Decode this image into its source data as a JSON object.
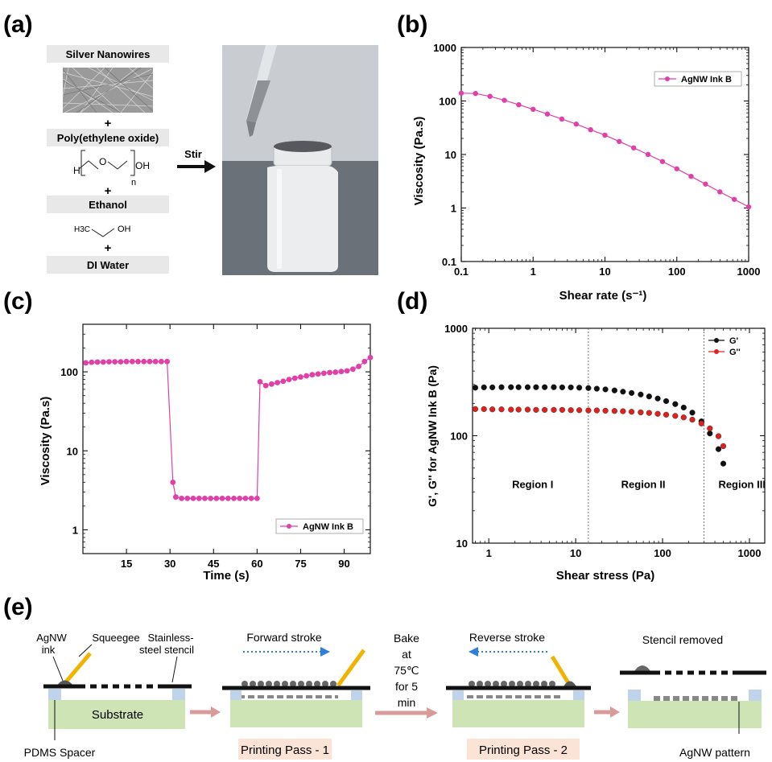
{
  "panels": {
    "a": {
      "label": "(a)",
      "ingredients": [
        "Silver Nanowires",
        "Poly(ethylene oxide)",
        "Ethanol",
        "DI Water"
      ],
      "plus": "+",
      "peo_h": "H",
      "peo_o": "O",
      "peo_oh": "OH",
      "peo_n": "n",
      "eth_ch3": "H3C",
      "eth_oh": "OH",
      "arrow_label": "Stir"
    },
    "b": {
      "label": "(b)"
    },
    "c": {
      "label": "(c)"
    },
    "d": {
      "label": "(d)"
    },
    "e": {
      "label": "(e)",
      "step1": {
        "ink": "AgNW ink",
        "squeegee": "Squeegee",
        "stencil": "Stainless-steel stencil",
        "stencil_l1": "Stainless-",
        "stencil_l2": "steel stencil",
        "substrate": "Substrate",
        "spacer": "PDMS Spacer",
        "ink_l1": "AgNW",
        "ink_l2": "ink"
      },
      "step2": {
        "stroke": "Forward stroke",
        "pass": "Printing Pass - 1"
      },
      "bake": [
        "Bake",
        "at",
        "75℃",
        "for 5",
        "min"
      ],
      "step3": {
        "stroke": "Reverse stroke",
        "pass": "Printing Pass - 2"
      },
      "step4": {
        "removed": "Stencil removed",
        "pattern": "AgNW pattern"
      }
    }
  },
  "chart_data": [
    {
      "panel": "b",
      "type": "line",
      "xscale": "log",
      "yscale": "log",
      "xlabel": "Shear rate (s⁻¹)",
      "ylabel": "Viscosity (Pa.s)",
      "xlim": [
        0.1,
        1000
      ],
      "ylim": [
        0.1,
        1000
      ],
      "xticks": [
        "0.1",
        "1",
        "10",
        "100",
        "1000"
      ],
      "yticks": [
        "0.1",
        "1",
        "10",
        "100",
        "1000"
      ],
      "legend": "top-right",
      "series": [
        {
          "name": "AgNW Ink B",
          "color": "#e040a8",
          "x": [
            0.1,
            0.158,
            0.251,
            0.398,
            0.631,
            1.0,
            1.58,
            2.51,
            3.98,
            6.31,
            10,
            15.8,
            25.1,
            39.8,
            63.1,
            100,
            158,
            251,
            398,
            631,
            1000
          ],
          "y": [
            140,
            138,
            122,
            103,
            85,
            70,
            57,
            46,
            37,
            29,
            23,
            17.5,
            13.3,
            10,
            7.4,
            5.4,
            3.9,
            2.8,
            2.0,
            1.45,
            1.05
          ]
        }
      ]
    },
    {
      "panel": "c",
      "type": "line",
      "yscale": "log",
      "xlabel": "Time (s)",
      "ylabel": "Viscosity (Pa.s)",
      "xlim": [
        0,
        99
      ],
      "ylim": [
        0.5,
        400
      ],
      "xticks": [
        "15",
        "30",
        "45",
        "60",
        "75",
        "90"
      ],
      "yticks": [
        "1",
        "10",
        "100"
      ],
      "legend": "bottom-right",
      "series": [
        {
          "name": "AgNW Ink B",
          "color": "#e040a8",
          "x": [
            1,
            3,
            5,
            7,
            9,
            11,
            13,
            15,
            17,
            19,
            21,
            23,
            25,
            27,
            29,
            31,
            32,
            34,
            36,
            38,
            40,
            42,
            44,
            46,
            48,
            50,
            52,
            54,
            56,
            58,
            60,
            61,
            63,
            65,
            67,
            69,
            71,
            73,
            75,
            77,
            79,
            81,
            83,
            85,
            87,
            89,
            91,
            93,
            95,
            97,
            99
          ],
          "y": [
            130,
            132,
            133,
            133,
            134,
            134,
            134,
            135,
            135,
            135,
            135,
            135,
            135,
            135,
            135,
            4.0,
            2.6,
            2.5,
            2.5,
            2.5,
            2.5,
            2.5,
            2.5,
            2.5,
            2.5,
            2.5,
            2.5,
            2.5,
            2.5,
            2.5,
            2.5,
            75,
            67,
            70,
            73,
            76,
            80,
            83,
            86,
            89,
            92,
            94,
            96,
            98,
            99,
            101,
            103,
            108,
            117,
            135,
            152
          ]
        }
      ]
    },
    {
      "panel": "d",
      "type": "scatter",
      "xscale": "log",
      "yscale": "log",
      "xlabel": "Shear stress (Pa)",
      "ylabel": "G', G'' for AgNW Ink B (Pa)",
      "xlim": [
        0.65,
        1500
      ],
      "ylim": [
        10,
        1000
      ],
      "xticks": [
        "1",
        "10",
        "100",
        "1000"
      ],
      "yticks": [
        "10",
        "100",
        "1000"
      ],
      "legend": "top-right",
      "regions": [
        {
          "label": "Region I"
        },
        {
          "label": "Region II",
          "boundary": 14
        },
        {
          "label": "Region III",
          "boundary": 300
        }
      ],
      "series": [
        {
          "name": "G'",
          "color": "#111111",
          "x": [
            0.7,
            0.88,
            1.1,
            1.4,
            1.8,
            2.2,
            2.8,
            3.5,
            4.4,
            5.6,
            7,
            8.8,
            11,
            14,
            17.5,
            22,
            28,
            35,
            44,
            56,
            70,
            88,
            110,
            140,
            175,
            220,
            280,
            350,
            440,
            500
          ],
          "y": [
            280,
            282,
            282,
            283,
            283,
            283,
            283,
            283,
            283,
            283,
            282,
            282,
            280,
            278,
            274,
            270,
            264,
            257,
            250,
            242,
            232,
            222,
            210,
            197,
            183,
            164,
            136,
            105,
            75,
            55
          ]
        },
        {
          "name": "G''",
          "color": "#e0201c",
          "x": [
            0.7,
            0.88,
            1.1,
            1.4,
            1.8,
            2.2,
            2.8,
            3.5,
            4.4,
            5.6,
            7,
            8.8,
            11,
            14,
            17.5,
            22,
            28,
            35,
            44,
            56,
            70,
            88,
            110,
            140,
            175,
            220,
            280,
            350,
            440,
            500
          ],
          "y": [
            177,
            177,
            176,
            176,
            175,
            175,
            175,
            174,
            174,
            174,
            174,
            173,
            173,
            172,
            172,
            171,
            170,
            169,
            167,
            165,
            163,
            160,
            157,
            153,
            148,
            141,
            130,
            117,
            99,
            80
          ]
        }
      ]
    }
  ]
}
